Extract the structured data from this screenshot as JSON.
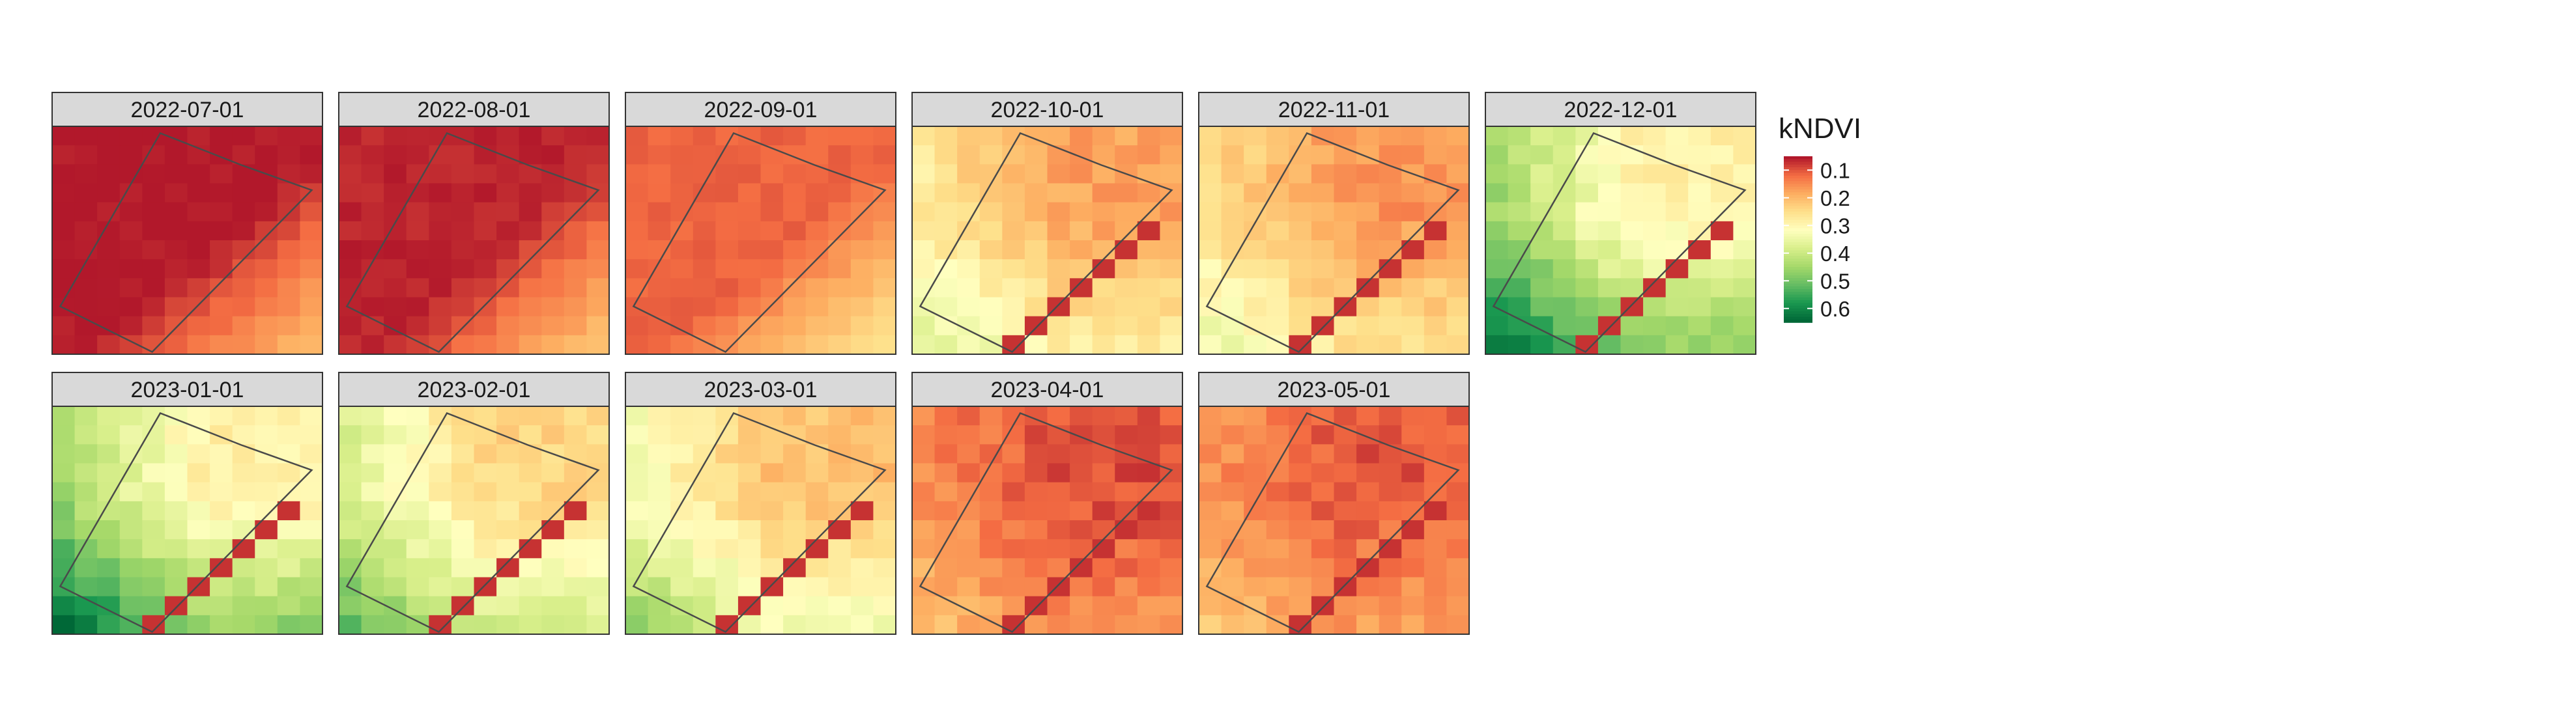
{
  "chart_data": {
    "type": "heatmap",
    "variable": "kNDVI",
    "panels": [
      {
        "label": "2022-07-01",
        "mean": 0.05
      },
      {
        "label": "2022-08-01",
        "mean": 0.06
      },
      {
        "label": "2022-09-01",
        "mean": 0.11
      },
      {
        "label": "2022-10-01",
        "mean": 0.24
      },
      {
        "label": "2022-11-01",
        "mean": 0.22
      },
      {
        "label": "2022-12-01",
        "mean": 0.4
      },
      {
        "label": "2023-01-01",
        "mean": 0.4
      },
      {
        "label": "2023-02-01",
        "mean": 0.33
      },
      {
        "label": "2023-03-01",
        "mean": 0.29
      },
      {
        "label": "2023-04-01",
        "mean": 0.13
      },
      {
        "label": "2023-05-01",
        "mean": 0.14
      }
    ],
    "legend": {
      "title": "kNDVI",
      "breaks": [
        0.1,
        0.2,
        0.3,
        0.4,
        0.5,
        0.6
      ],
      "labels": [
        "0.1",
        "0.2",
        "0.3",
        "0.4",
        "0.5",
        "0.6"
      ],
      "range": [
        0.05,
        0.65
      ],
      "palette": [
        "#b2182b",
        "#f46d43",
        "#fdae61",
        "#fee08b",
        "#ffffbf",
        "#d9ef8b",
        "#a6d96a",
        "#66bd63",
        "#1a9850",
        "#006837"
      ]
    }
  }
}
